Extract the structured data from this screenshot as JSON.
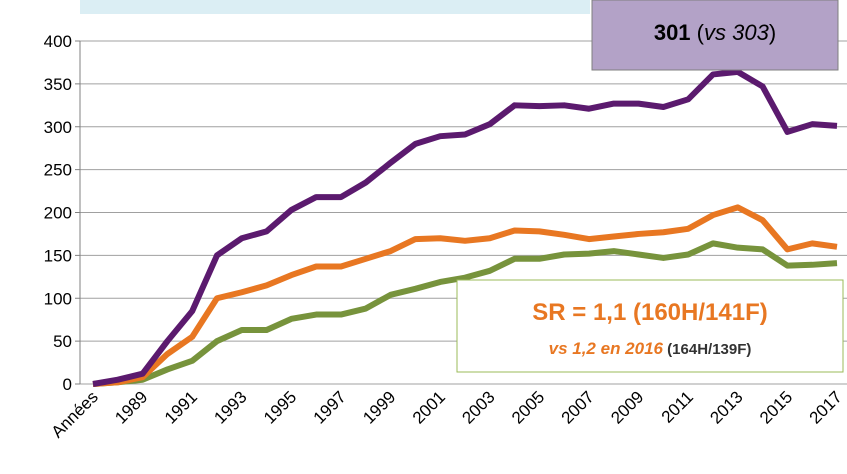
{
  "chart_data": {
    "type": "line",
    "categories": [
      "Années",
      null,
      "1989",
      null,
      "1991",
      null,
      "1993",
      null,
      "1995",
      null,
      "1997",
      null,
      "1999",
      null,
      "2001",
      null,
      "2003",
      null,
      "2005",
      null,
      "2007",
      null,
      "2009",
      null,
      "2011",
      null,
      "2013",
      null,
      "2015",
      null,
      "2017"
    ],
    "series": [
      {
        "color": "#5b1a6e",
        "values": [
          0,
          5,
          12,
          50,
          85,
          150,
          170,
          178,
          203,
          218,
          218,
          235,
          258,
          280,
          289,
          291,
          303,
          325,
          324,
          325,
          321,
          327,
          327,
          323,
          332,
          361,
          364,
          347,
          294,
          303,
          301
        ]
      },
      {
        "color": "#e87722",
        "values": [
          0,
          2,
          8,
          35,
          55,
          100,
          107,
          115,
          127,
          137,
          137,
          146,
          155,
          169,
          170,
          167,
          170,
          179,
          178,
          174,
          169,
          172,
          175,
          177,
          181,
          197,
          206,
          191,
          157,
          164,
          160
        ]
      },
      {
        "color": "#77933c",
        "values": [
          0,
          2,
          5,
          17,
          27,
          50,
          63,
          63,
          76,
          81,
          81,
          88,
          104,
          111,
          119,
          124,
          132,
          146,
          146,
          151,
          152,
          155,
          151,
          147,
          151,
          164,
          159,
          157,
          138,
          139,
          141
        ]
      }
    ],
    "ylim": [
      0,
      400
    ],
    "yticks": [
      0,
      50,
      100,
      150,
      200,
      250,
      300,
      350,
      400
    ],
    "grid": true,
    "annotations": [
      {
        "parts": [
          "301",
          " (",
          "vs 303",
          ")"
        ]
      },
      {
        "parts": [
          "SR = 1,1 (160H/141F)",
          "vs 1,2 en 2016",
          " (164H/139F)"
        ]
      }
    ]
  }
}
